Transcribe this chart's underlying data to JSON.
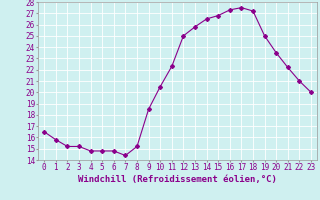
{
  "x": [
    0,
    1,
    2,
    3,
    4,
    5,
    6,
    7,
    8,
    9,
    10,
    11,
    12,
    13,
    14,
    15,
    16,
    17,
    18,
    19,
    20,
    21,
    22,
    23
  ],
  "y": [
    16.5,
    15.8,
    15.2,
    15.2,
    14.8,
    14.8,
    14.8,
    14.4,
    15.2,
    18.5,
    20.5,
    22.3,
    25.0,
    25.8,
    26.5,
    26.8,
    27.3,
    27.5,
    27.2,
    25.0,
    23.5,
    22.2,
    21.0,
    20.0
  ],
  "line_color": "#8B008B",
  "marker": "D",
  "marker_size": 2,
  "linewidth": 0.8,
  "xlabel": "Windchill (Refroidissement éolien,°C)",
  "ylabel": "",
  "title": "",
  "xlim": [
    -0.5,
    23.5
  ],
  "ylim": [
    14,
    28
  ],
  "yticks": [
    14,
    15,
    16,
    17,
    18,
    19,
    20,
    21,
    22,
    23,
    24,
    25,
    26,
    27,
    28
  ],
  "xtick_labels": [
    "0",
    "1",
    "2",
    "3",
    "4",
    "5",
    "6",
    "7",
    "8",
    "9",
    "10",
    "11",
    "12",
    "13",
    "14",
    "15",
    "16",
    "17",
    "18",
    "19",
    "20",
    "21",
    "22",
    "23"
  ],
  "background_color": "#cff0f0",
  "grid_color": "#ffffff",
  "tick_fontsize": 5.5,
  "xlabel_fontsize": 6.5
}
